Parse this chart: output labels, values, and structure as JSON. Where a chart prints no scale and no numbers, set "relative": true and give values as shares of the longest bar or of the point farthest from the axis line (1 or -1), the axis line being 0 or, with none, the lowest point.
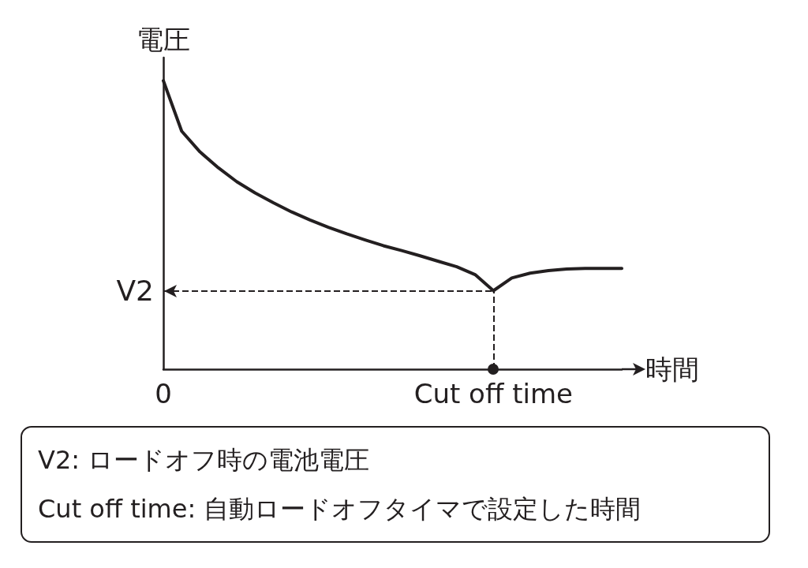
{
  "chart_data": {
    "type": "line",
    "xlabel": "時間",
    "ylabel": "電圧",
    "relative": true,
    "color": "#231f20",
    "marker": "none",
    "line_style": "solid",
    "grid": false,
    "categories": [
      "0",
      null,
      null,
      null,
      null,
      null,
      null,
      null,
      null,
      null,
      null,
      null,
      null,
      null,
      null,
      null,
      null,
      null,
      "Cut off time",
      null,
      null,
      null,
      null,
      null,
      null,
      null
    ],
    "values": [
      1.0,
      0.825,
      0.753,
      0.698,
      0.65,
      0.611,
      0.577,
      0.545,
      0.517,
      0.492,
      0.469,
      0.448,
      0.428,
      0.411,
      0.393,
      0.374,
      0.355,
      0.328,
      0.272,
      0.316,
      0.333,
      0.342,
      0.347,
      0.349,
      0.349,
      0.349
    ],
    "ref_lines": [
      {
        "axis": "y",
        "value": 0.272,
        "label": "V2",
        "line_style": "dashed"
      },
      {
        "axis": "x",
        "value": "Cut off time",
        "line_style": "dashed"
      }
    ],
    "annotations": [
      "V2: ロードオフ時の電池電圧",
      "Cut off time: 自動ロードオフタイマで設定した時間"
    ]
  }
}
